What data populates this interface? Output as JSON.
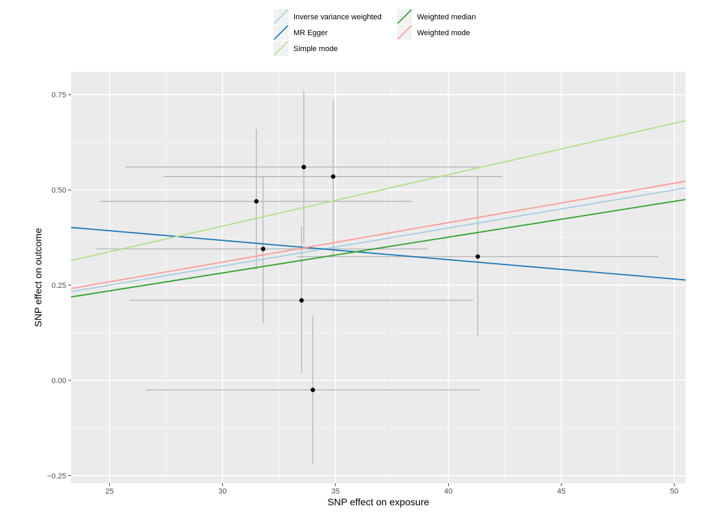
{
  "chart_data": {
    "type": "scatter",
    "xlabel": "SNP effect on exposure",
    "ylabel": "SNP effect on outcome",
    "xlim": [
      23.3,
      50.5
    ],
    "ylim": [
      -0.27,
      0.81
    ],
    "xticks": [
      25,
      30,
      35,
      40,
      45,
      50
    ],
    "yticks": [
      -0.25,
      0.0,
      0.25,
      0.5,
      0.75
    ],
    "xtick_labels": [
      "25",
      "30",
      "35",
      "40",
      "45",
      "50"
    ],
    "ytick_labels": [
      "−0.25",
      "0.00",
      "0.25",
      "0.50",
      "0.75"
    ],
    "grid": true,
    "panel_background": "#ebebeb",
    "legend_position": "top",
    "points": [
      {
        "x": 31.5,
        "y": 0.47,
        "x_lo": 24.6,
        "x_hi": 38.4,
        "y_lo": 0.29,
        "y_hi": 0.66
      },
      {
        "x": 33.6,
        "y": 0.56,
        "x_lo": 25.7,
        "x_hi": 41.4,
        "y_lo": 0.36,
        "y_hi": 0.76
      },
      {
        "x": 34.9,
        "y": 0.535,
        "x_lo": 27.4,
        "x_hi": 42.4,
        "y_lo": 0.33,
        "y_hi": 0.735
      },
      {
        "x": 31.8,
        "y": 0.345,
        "x_lo": 24.4,
        "x_hi": 39.1,
        "y_lo": 0.15,
        "y_hi": 0.535
      },
      {
        "x": 41.3,
        "y": 0.325,
        "x_lo": 33.3,
        "x_hi": 49.3,
        "y_lo": 0.115,
        "y_hi": 0.535
      },
      {
        "x": 33.5,
        "y": 0.21,
        "x_lo": 25.9,
        "x_hi": 41.1,
        "y_lo": 0.02,
        "y_hi": 0.405
      },
      {
        "x": 34.0,
        "y": -0.025,
        "x_lo": 26.6,
        "x_hi": 41.4,
        "y_lo": -0.22,
        "y_hi": 0.17
      }
    ],
    "series": [
      {
        "name": "Inverse variance weighted",
        "color": "#a6cee3",
        "intercept": 0.0,
        "slope": 0.01
      },
      {
        "name": "MR Egger",
        "color": "#1f78b4",
        "intercept": 0.5196,
        "slope": -0.00507
      },
      {
        "name": "Simple mode",
        "color": "#b2df8a",
        "intercept": 0.0,
        "slope": 0.0135
      },
      {
        "name": "Weighted median",
        "color": "#33a02c",
        "intercept": 0.0,
        "slope": 0.0094
      },
      {
        "name": "Weighted mode",
        "color": "#fb9a99",
        "intercept": 0.0,
        "slope": 0.01035
      }
    ]
  }
}
